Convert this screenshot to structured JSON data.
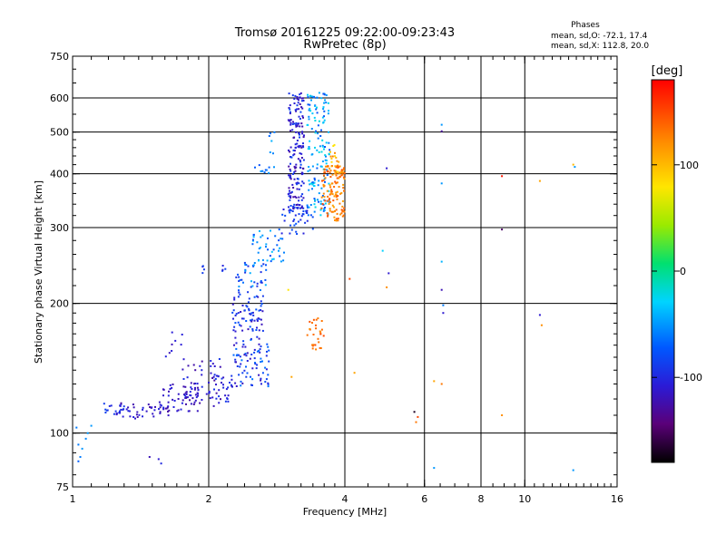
{
  "chart_data": {
    "type": "scatter",
    "title_line1": "Tromsø 20161225 09:22:00-09:23:43",
    "title_line2": "RwPretec (8p)",
    "phases": {
      "heading": "Phases",
      "o_stats": "mean, sd,O: -72.1, 17.4",
      "x_stats": "mean, sd,X: 112.8, 20.0"
    },
    "xlabel": "Frequency [MHz]",
    "ylabel": "Stationary phase Virtual Height [km]",
    "x_scale": "log",
    "y_scale": "log",
    "xlim": [
      1,
      16
    ],
    "ylim": [
      75,
      750
    ],
    "x_ticks": [
      {
        "value": 1,
        "label": "1"
      },
      {
        "value": 2,
        "label": "2"
      },
      {
        "value": 4,
        "label": "4"
      },
      {
        "value": 6,
        "label": "6"
      },
      {
        "value": 8,
        "label": "8"
      },
      {
        "value": 10,
        "label": "10"
      },
      {
        "value": 16,
        "label": "16"
      }
    ],
    "x_grid": [
      2,
      4,
      6,
      8,
      10
    ],
    "y_ticks": [
      {
        "value": 75,
        "label": "75"
      },
      {
        "value": 100,
        "label": "100"
      },
      {
        "value": 200,
        "label": "200"
      },
      {
        "value": 300,
        "label": "300"
      },
      {
        "value": 400,
        "label": "400"
      },
      {
        "value": 500,
        "label": "500"
      },
      {
        "value": 600,
        "label": "600"
      },
      {
        "value": 750,
        "label": "750"
      }
    ],
    "y_grid": [
      100,
      200,
      300,
      400,
      500,
      600
    ],
    "colorbar": {
      "label": "[deg]",
      "range": [
        -180,
        180
      ],
      "ticks": [
        {
          "value": 100,
          "label": "100"
        },
        {
          "value": 0,
          "label": "0"
        },
        {
          "value": -100,
          "label": "-100"
        }
      ]
    },
    "clusters": [
      {
        "x": [
          1.15,
          1.3
        ],
        "y": [
          110,
          118
        ],
        "phase": [
          -110,
          -80
        ],
        "n": 18
      },
      {
        "x": [
          1.25,
          1.65
        ],
        "y": [
          108,
          118
        ],
        "phase": [
          -130,
          -100
        ],
        "n": 40
      },
      {
        "x": [
          1.55,
          1.9
        ],
        "y": [
          112,
          130
        ],
        "phase": [
          -130,
          -100
        ],
        "n": 55
      },
      {
        "x": [
          1.6,
          1.75
        ],
        "y": [
          150,
          175
        ],
        "phase": [
          -120,
          -100
        ],
        "n": 8
      },
      {
        "x": [
          1.75,
          2.15
        ],
        "y": [
          115,
          150
        ],
        "phase": [
          -130,
          -90
        ],
        "n": 45
      },
      {
        "x": [
          2.0,
          2.25
        ],
        "y": [
          118,
          138
        ],
        "phase": [
          -120,
          -85
        ],
        "n": 30
      },
      {
        "x": [
          2.25,
          2.75
        ],
        "y": [
          128,
          165
        ],
        "phase": [
          -120,
          -60
        ],
        "n": 80
      },
      {
        "x": [
          2.25,
          2.65
        ],
        "y": [
          165,
          210
        ],
        "phase": [
          -120,
          -70
        ],
        "n": 70
      },
      {
        "x": [
          2.3,
          2.7
        ],
        "y": [
          210,
          250
        ],
        "phase": [
          -100,
          -40
        ],
        "n": 40
      },
      {
        "x": [
          2.5,
          2.95
        ],
        "y": [
          250,
          300
        ],
        "phase": [
          -80,
          -30
        ],
        "n": 40
      },
      {
        "x": [
          1.9,
          2.2
        ],
        "y": [
          235,
          245
        ],
        "phase": [
          -110,
          -80
        ],
        "n": 8
      },
      {
        "x": [
          2.5,
          2.8
        ],
        "y": [
          400,
          420
        ],
        "phase": [
          -80,
          -50
        ],
        "n": 10
      },
      {
        "x": [
          2.7,
          2.9
        ],
        "y": [
          440,
          500
        ],
        "phase": [
          -70,
          -40
        ],
        "n": 6
      },
      {
        "x": [
          2.9,
          3.4
        ],
        "y": [
          290,
          340
        ],
        "phase": [
          -110,
          -70
        ],
        "n": 45
      },
      {
        "x": [
          3.0,
          3.25
        ],
        "y": [
          330,
          620
        ],
        "phase": [
          -130,
          -80
        ],
        "n": 170
      },
      {
        "x": [
          3.3,
          3.7
        ],
        "y": [
          320,
          620
        ],
        "phase": [
          -80,
          -20
        ],
        "n": 150
      },
      {
        "x": [
          3.55,
          4.0
        ],
        "y": [
          310,
          420
        ],
        "phase": [
          110,
          150
        ],
        "n": 130
      },
      {
        "x": [
          3.7,
          3.95
        ],
        "y": [
          400,
          470
        ],
        "phase": [
          80,
          130
        ],
        "n": 18
      },
      {
        "x": [
          3.3,
          3.6
        ],
        "y": [
          155,
          185
        ],
        "phase": [
          120,
          150
        ],
        "n": 28
      }
    ],
    "points": [
      {
        "x": 1.03,
        "y": 94,
        "phase": -60
      },
      {
        "x": 1.05,
        "y": 92,
        "phase": -50
      },
      {
        "x": 1.07,
        "y": 97,
        "phase": -55
      },
      {
        "x": 1.04,
        "y": 88,
        "phase": -60
      },
      {
        "x": 1.03,
        "y": 86,
        "phase": -70
      },
      {
        "x": 1.08,
        "y": 100,
        "phase": -50
      },
      {
        "x": 1.02,
        "y": 103,
        "phase": -60
      },
      {
        "x": 1.1,
        "y": 104,
        "phase": -50
      },
      {
        "x": 1.48,
        "y": 88,
        "phase": -120
      },
      {
        "x": 1.55,
        "y": 87,
        "phase": -110
      },
      {
        "x": 1.57,
        "y": 85,
        "phase": -100
      },
      {
        "x": 3.05,
        "y": 135,
        "phase": 110
      },
      {
        "x": 3.0,
        "y": 215,
        "phase": 80
      },
      {
        "x": 4.1,
        "y": 228,
        "phase": 150
      },
      {
        "x": 4.2,
        "y": 138,
        "phase": 110
      },
      {
        "x": 4.95,
        "y": 412,
        "phase": -110
      },
      {
        "x": 4.85,
        "y": 265,
        "phase": -30
      },
      {
        "x": 5.0,
        "y": 235,
        "phase": -110
      },
      {
        "x": 4.95,
        "y": 218,
        "phase": 120
      },
      {
        "x": 5.7,
        "y": 112,
        "phase": -170
      },
      {
        "x": 5.75,
        "y": 106,
        "phase": 130
      },
      {
        "x": 5.8,
        "y": 109,
        "phase": 150
      },
      {
        "x": 6.3,
        "y": 132,
        "phase": 110
      },
      {
        "x": 6.3,
        "y": 83,
        "phase": -50
      },
      {
        "x": 6.55,
        "y": 520,
        "phase": -50
      },
      {
        "x": 6.55,
        "y": 502,
        "phase": -130
      },
      {
        "x": 6.55,
        "y": 380,
        "phase": -50
      },
      {
        "x": 6.55,
        "y": 250,
        "phase": -40
      },
      {
        "x": 6.55,
        "y": 215,
        "phase": -120
      },
      {
        "x": 6.6,
        "y": 198,
        "phase": -60
      },
      {
        "x": 6.6,
        "y": 190,
        "phase": -110
      },
      {
        "x": 6.55,
        "y": 130,
        "phase": 130
      },
      {
        "x": 8.9,
        "y": 395,
        "phase": 170
      },
      {
        "x": 8.9,
        "y": 297,
        "phase": -150
      },
      {
        "x": 8.9,
        "y": 110,
        "phase": 120
      },
      {
        "x": 10.8,
        "y": 385,
        "phase": 110
      },
      {
        "x": 10.8,
        "y": 188,
        "phase": -110
      },
      {
        "x": 10.9,
        "y": 178,
        "phase": 120
      },
      {
        "x": 12.8,
        "y": 420,
        "phase": 100
      },
      {
        "x": 12.9,
        "y": 415,
        "phase": -50
      },
      {
        "x": 12.8,
        "y": 82,
        "phase": -50
      }
    ]
  }
}
